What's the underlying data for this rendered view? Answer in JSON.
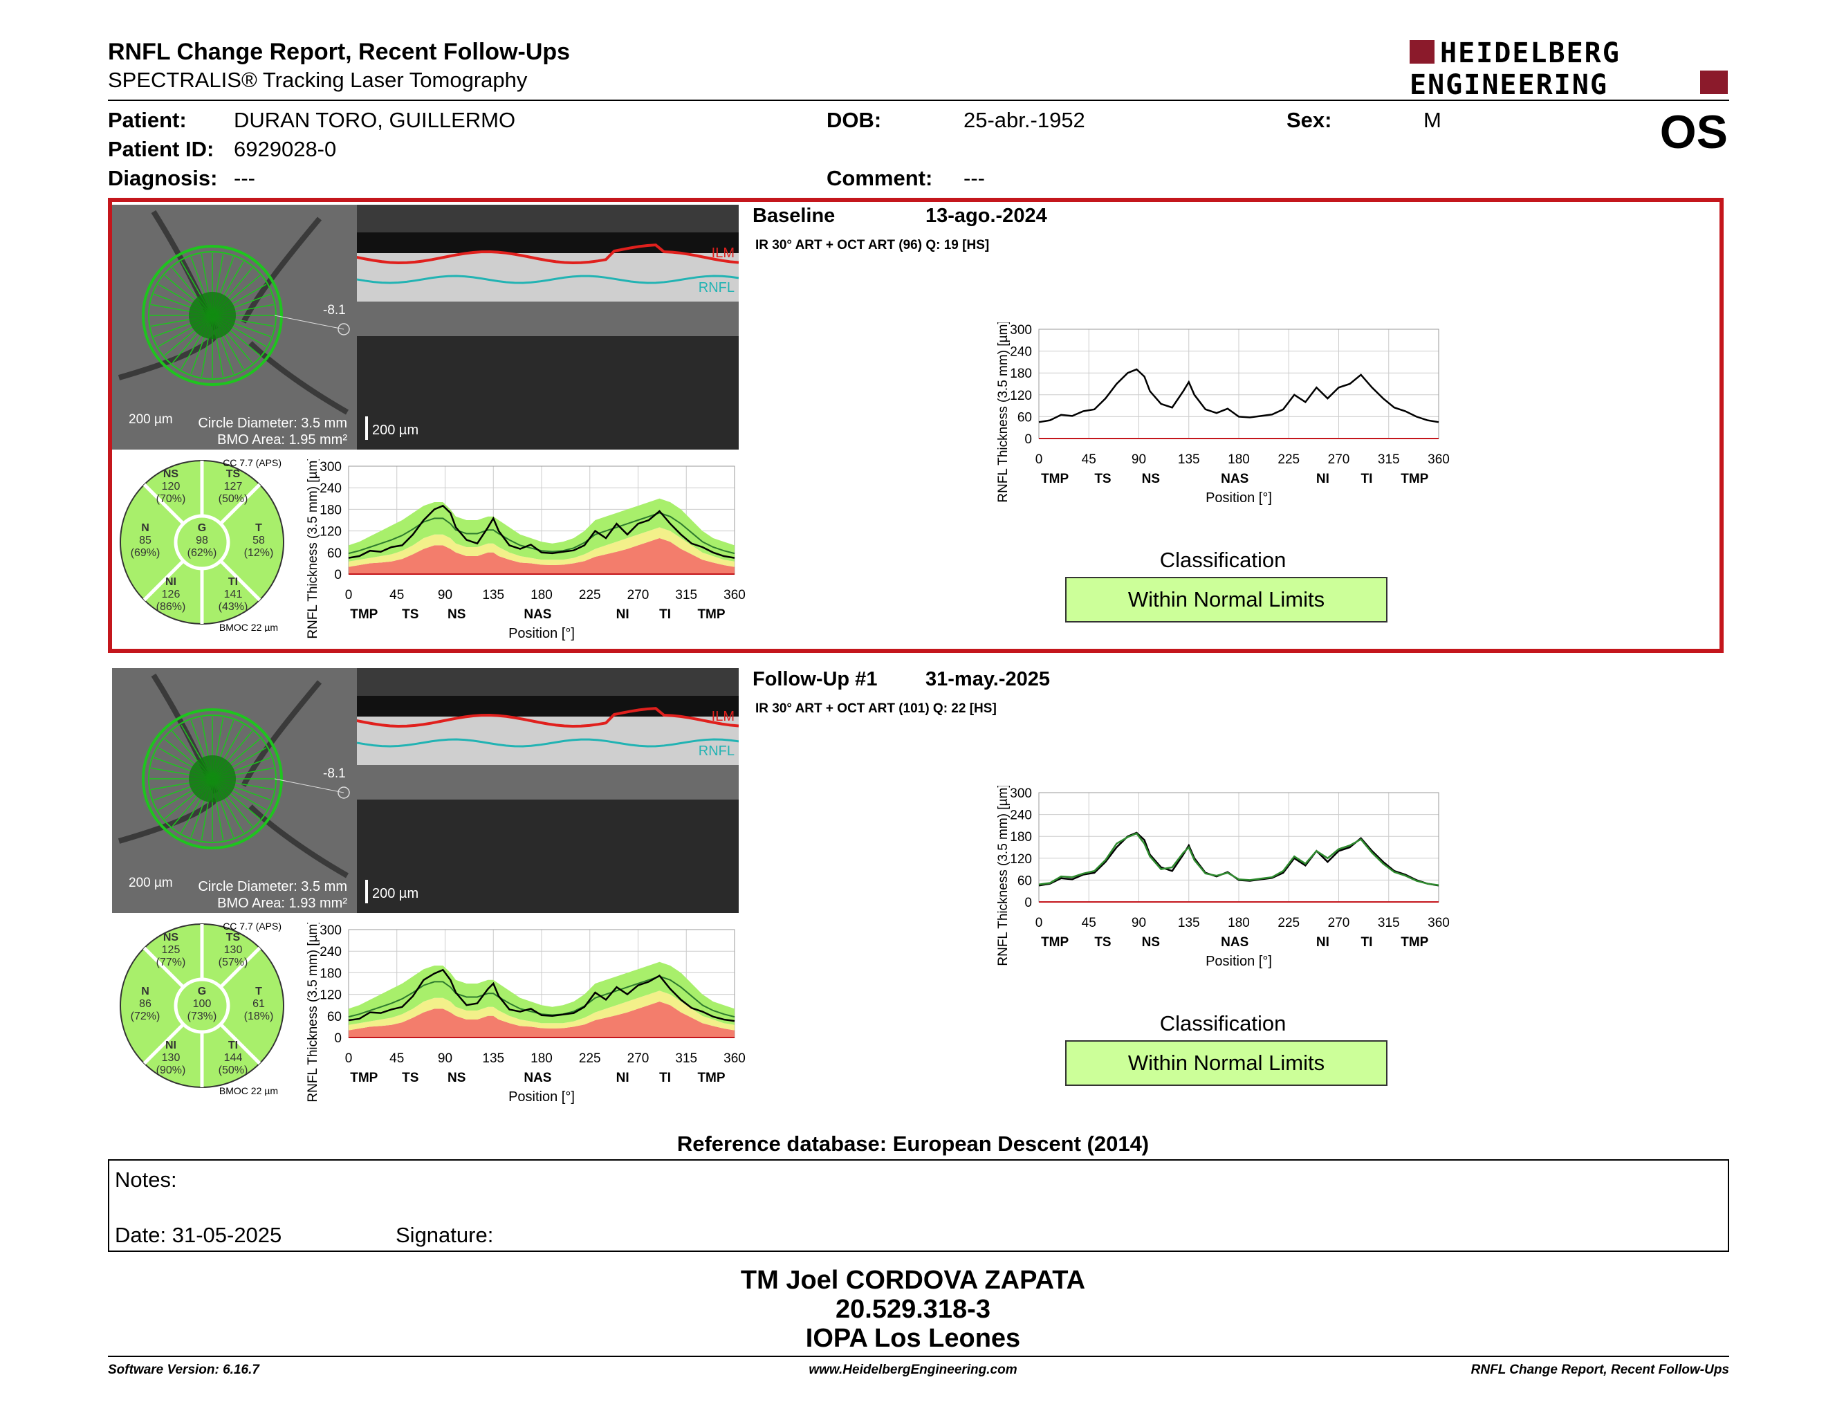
{
  "header": {
    "title": "RNFL Change Report, Recent Follow-Ups",
    "subtitle": "SPECTRALIS® Tracking Laser Tomography",
    "logo_line1": "HEIDELBERG",
    "logo_line2": "ENGINEERING",
    "eye": "OS"
  },
  "patient": {
    "patient_label": "Patient:",
    "patient_value": "DURAN TORO, GUILLERMO",
    "id_label": "Patient ID:",
    "id_value": "6929028-0",
    "diagnosis_label": "Diagnosis:",
    "diagnosis_value": "---",
    "dob_label": "DOB:",
    "dob_value": "25-abr.-1952",
    "comment_label": "Comment:",
    "comment_value": "---",
    "sex_label": "Sex:",
    "sex_value": "M"
  },
  "exams": [
    {
      "title": "Baseline",
      "date": "13-ago.-2024",
      "scan_info": "IR 30° ART + OCT ART (96) Q: 19 [HS]",
      "fundus_scale": "200 µm",
      "circle_diameter": "Circle Diameter: 3.5 mm",
      "bmo_area": "BMO Area: 1.95 mm²",
      "angle": "-8.1",
      "oct_scale": "200 µm",
      "ilm": "ILM",
      "rnfl": "RNFL",
      "cc": "CC 7.7 (APS)",
      "bmoc": "BMOC 22 µm",
      "sectors": {
        "NS": {
          "label": "NS",
          "value": "120",
          "pct": "(70%)"
        },
        "TS": {
          "label": "TS",
          "value": "127",
          "pct": "(50%)"
        },
        "N": {
          "label": "N",
          "value": "85",
          "pct": "(69%)"
        },
        "G": {
          "label": "G",
          "value": "98",
          "pct": "(62%)"
        },
        "T": {
          "label": "T",
          "value": "58",
          "pct": "(12%)"
        },
        "NI": {
          "label": "NI",
          "value": "126",
          "pct": "(86%)"
        },
        "TI": {
          "label": "TI",
          "value": "141",
          "pct": "(43%)"
        }
      },
      "classification_label": "Classification",
      "classification": "Within Normal Limits"
    },
    {
      "title": "Follow-Up #1",
      "date": "31-may.-2025",
      "scan_info": "IR 30° ART + OCT ART (101) Q: 22 [HS]",
      "fundus_scale": "200 µm",
      "circle_diameter": "Circle Diameter: 3.5 mm",
      "bmo_area": "BMO Area: 1.93 mm²",
      "angle": "-8.1",
      "oct_scale": "200 µm",
      "ilm": "ILM",
      "rnfl": "RNFL",
      "cc": "CC 7.7 (APS)",
      "bmoc": "BMOC 22 µm",
      "sectors": {
        "NS": {
          "label": "NS",
          "value": "125",
          "pct": "(77%)"
        },
        "TS": {
          "label": "TS",
          "value": "130",
          "pct": "(57%)"
        },
        "N": {
          "label": "N",
          "value": "86",
          "pct": "(72%)"
        },
        "G": {
          "label": "G",
          "value": "100",
          "pct": "(73%)"
        },
        "T": {
          "label": "T",
          "value": "61",
          "pct": "(18%)"
        },
        "NI": {
          "label": "NI",
          "value": "130",
          "pct": "(90%)"
        },
        "TI": {
          "label": "TI",
          "value": "144",
          "pct": "(50%)"
        }
      },
      "classification_label": "Classification",
      "classification": "Within Normal Limits"
    }
  ],
  "chart_data": {
    "type": "line",
    "ylabel": "RNFL Thickness (3.5 mm) [µm]",
    "xlabel": "Position [°]",
    "ylim": [
      0,
      300
    ],
    "xlim": [
      0,
      360
    ],
    "yticks": [
      "300",
      "240",
      "180",
      "120",
      "60",
      "0"
    ],
    "xticks": [
      "0",
      "45",
      "90",
      "135",
      "180",
      "225",
      "270",
      "315",
      "360"
    ],
    "sector_labels": [
      "TMP",
      "TS",
      "NS",
      "NAS",
      "NI",
      "TI",
      "TMP"
    ],
    "x": [
      0,
      10,
      20,
      30,
      40,
      50,
      60,
      70,
      80,
      88,
      95,
      100,
      110,
      120,
      130,
      135,
      140,
      150,
      160,
      170,
      180,
      190,
      200,
      210,
      220,
      230,
      240,
      250,
      260,
      270,
      280,
      290,
      300,
      310,
      320,
      330,
      340,
      350,
      360
    ],
    "series": [
      {
        "values": [
          45,
          50,
          65,
          62,
          75,
          80,
          110,
          150,
          180,
          190,
          170,
          130,
          95,
          85,
          130,
          155,
          120,
          80,
          70,
          82,
          60,
          58,
          62,
          66,
          80,
          120,
          100,
          140,
          110,
          140,
          150,
          175,
          140,
          110,
          85,
          75,
          60,
          50,
          45
        ]
      },
      {
        "values": [
          48,
          52,
          70,
          68,
          78,
          85,
          115,
          160,
          178,
          188,
          160,
          125,
          90,
          95,
          135,
          150,
          115,
          78,
          72,
          80,
          62,
          60,
          64,
          68,
          85,
          125,
          105,
          140,
          120,
          145,
          155,
          172,
          135,
          105,
          82,
          72,
          58,
          50,
          46
        ]
      }
    ],
    "normal_upper": [
      80,
      90,
      105,
      120,
      135,
      150,
      170,
      190,
      200,
      200,
      180,
      160,
      150,
      150,
      160,
      160,
      150,
      130,
      110,
      100,
      90,
      85,
      90,
      100,
      120,
      150,
      160,
      170,
      180,
      190,
      200,
      210,
      200,
      180,
      150,
      120,
      100,
      90,
      80
    ],
    "normal_lower": [
      35,
      40,
      45,
      50,
      55,
      65,
      80,
      100,
      110,
      110,
      100,
      85,
      75,
      75,
      85,
      85,
      75,
      60,
      50,
      45,
      40,
      40,
      40,
      45,
      55,
      70,
      80,
      90,
      100,
      110,
      120,
      130,
      120,
      100,
      80,
      60,
      50,
      40,
      35
    ],
    "borderline_lower": [
      20,
      25,
      30,
      32,
      35,
      42,
      55,
      70,
      80,
      80,
      70,
      60,
      50,
      50,
      60,
      60,
      50,
      40,
      32,
      30,
      26,
      25,
      26,
      30,
      36,
      48,
      55,
      62,
      70,
      80,
      90,
      100,
      90,
      70,
      55,
      40,
      32,
      25,
      20
    ]
  },
  "footer_ref": "Reference database: European Descent (2014)",
  "notes": {
    "label": "Notes:",
    "date": "Date: 31-05-2025",
    "signature": "Signature:"
  },
  "signer": {
    "name": "TM Joel CORDOVA ZAPATA",
    "id": "20.529.318-3",
    "org": "IOPA Los Leones"
  },
  "footer": {
    "left": "Software Version: 6.16.7",
    "center": "www.HeidelbergEngineering.com",
    "right": "RNFL Change Report, Recent Follow-Ups"
  },
  "colors": {
    "frame": "#c4161c",
    "normal": "#a8ef6b",
    "borderline": "#f3f08a",
    "outside": "#f37d6c",
    "class_box": "#ccff99"
  }
}
